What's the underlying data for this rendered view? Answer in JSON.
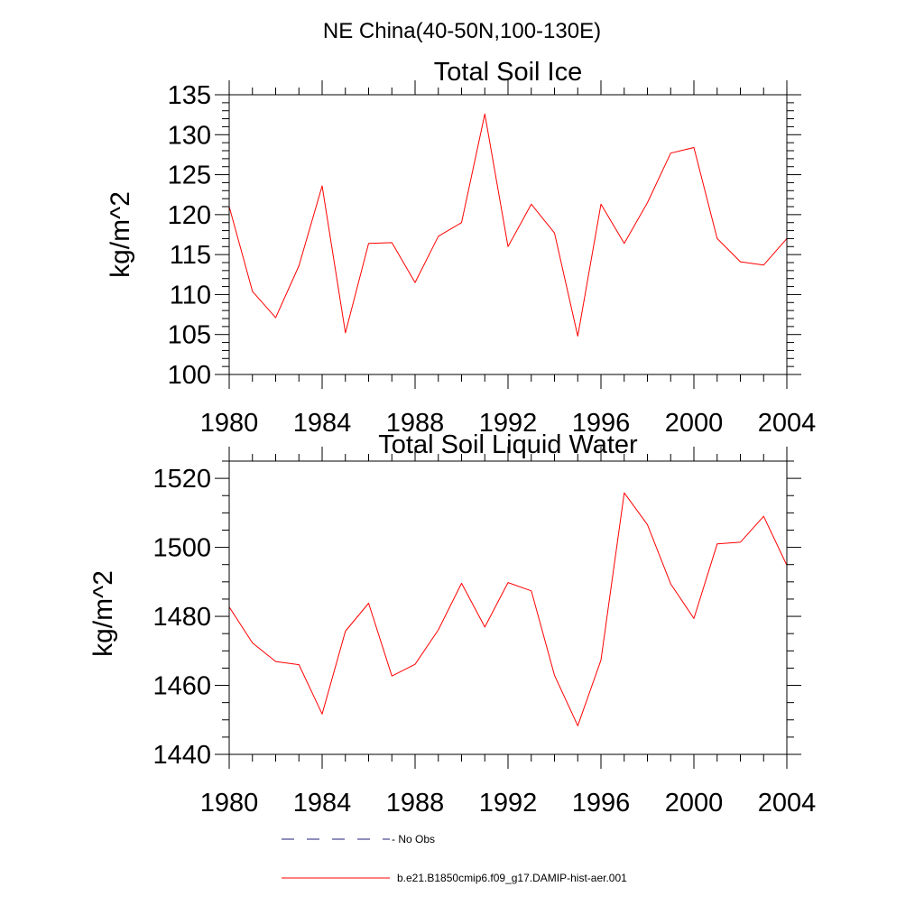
{
  "figure": {
    "title": "NE China(40-50N,100-130E)"
  },
  "colors": {
    "series": "#ff0000",
    "no_obs": "#1f1f7a",
    "axes": "#000000"
  },
  "chart_data": [
    {
      "type": "line",
      "title": "Total Soil Ice",
      "xlabel": "",
      "ylabel": "kg/m^2",
      "xlim": [
        1980,
        2004
      ],
      "ylim": [
        100,
        135
      ],
      "xticks": [
        1980,
        1984,
        1988,
        1992,
        1996,
        2000,
        2004
      ],
      "xtick_labels": [
        "1980",
        "1984",
        "1988",
        "1992",
        "1996",
        "2000",
        "2004"
      ],
      "yticks": [
        100,
        105,
        110,
        115,
        120,
        125,
        130,
        135
      ],
      "ytick_labels": [
        "100",
        "105",
        "110",
        "115",
        "120",
        "125",
        "130",
        "135"
      ],
      "grid": false,
      "series": [
        {
          "name": "b.e21.B1850cmip6.f09_g17.DAMIP-hist-aer.001",
          "x": [
            1980,
            1981,
            1982,
            1983,
            1984,
            1985,
            1986,
            1987,
            1988,
            1989,
            1990,
            1991,
            1992,
            1993,
            1994,
            1995,
            1996,
            1997,
            1998,
            1999,
            2000,
            2001,
            2002,
            2003,
            2004
          ],
          "values": [
            121.0,
            110.4,
            107.1,
            113.6,
            123.6,
            105.2,
            116.4,
            116.5,
            111.5,
            117.3,
            119.0,
            132.6,
            116.0,
            121.3,
            117.7,
            104.8,
            121.3,
            116.4,
            121.5,
            127.7,
            128.4,
            117.0,
            114.1,
            113.7,
            117.0
          ]
        }
      ]
    },
    {
      "type": "line",
      "title": "Total Soil Liquid Water",
      "xlabel": "",
      "ylabel": "kg/m^2",
      "xlim": [
        1980,
        2004
      ],
      "ylim": [
        1440,
        1525
      ],
      "xticks": [
        1980,
        1984,
        1988,
        1992,
        1996,
        2000,
        2004
      ],
      "xtick_labels": [
        "1980",
        "1984",
        "1988",
        "1992",
        "1996",
        "2000",
        "2004"
      ],
      "yticks": [
        1440,
        1460,
        1480,
        1500,
        1520
      ],
      "ytick_labels": [
        "1440",
        "1460",
        "1480",
        "1500",
        "1520"
      ],
      "grid": false,
      "series": [
        {
          "name": "b.e21.B1850cmip6.f09_g17.DAMIP-hist-aer.001",
          "x": [
            1980,
            1981,
            1982,
            1983,
            1984,
            1985,
            1986,
            1987,
            1988,
            1989,
            1990,
            1991,
            1992,
            1993,
            1994,
            1995,
            1996,
            1997,
            1998,
            1999,
            2000,
            2001,
            2002,
            2003,
            2004
          ],
          "values": [
            1482.7,
            1472.3,
            1466.9,
            1466.0,
            1451.7,
            1475.7,
            1483.8,
            1462.7,
            1466.1,
            1476.1,
            1489.6,
            1476.9,
            1489.8,
            1487.4,
            1462.9,
            1448.3,
            1467.3,
            1515.8,
            1506.6,
            1489.4,
            1479.4,
            1501.0,
            1501.5,
            1509.0,
            1494.8
          ]
        }
      ]
    }
  ],
  "legend": {
    "placement": "bottom",
    "items": [
      {
        "label": "- No Obs",
        "style": "dashed"
      },
      {
        "label": "b.e21.B1850cmip6.f09_g17.DAMIP-hist-aer.001",
        "style": "solid"
      }
    ]
  }
}
